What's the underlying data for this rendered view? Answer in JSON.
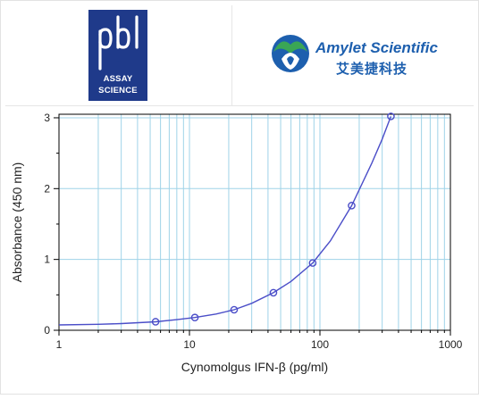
{
  "logos": {
    "pbl": {
      "letters": "pbl",
      "line1": "ASSAY",
      "line2": "SCIENCE"
    },
    "amylet": {
      "name": "Amylet Scientific",
      "name_cn": "艾美捷科技"
    }
  },
  "colors": {
    "pbl_blue": "#1f3a8a",
    "amylet_blue": "#1d5fae",
    "amylet_green": "#3aa655",
    "grid": "#9fd3e8",
    "curve": "#4b4ec8"
  },
  "chart_data": {
    "type": "scatter",
    "xlabel": "Cynomolgus IFN-β (pg/ml)",
    "ylabel": "Absorbance (450 nm)",
    "xscale": "log",
    "xlim": [
      1,
      1000
    ],
    "ylim": [
      0,
      3.05
    ],
    "x_ticks": [
      1,
      10,
      100,
      1000
    ],
    "x_tick_labels": [
      "1",
      "10",
      "100",
      "1000"
    ],
    "y_ticks": [
      0,
      1,
      2,
      3
    ],
    "y_tick_labels": [
      "0",
      "1",
      "2",
      "3"
    ],
    "grid": true,
    "series": [
      {
        "points": [
          {
            "x": 5.5,
            "y": 0.12
          },
          {
            "x": 11,
            "y": 0.18
          },
          {
            "x": 22,
            "y": 0.29
          },
          {
            "x": 44,
            "y": 0.53
          },
          {
            "x": 88,
            "y": 0.95
          },
          {
            "x": 175,
            "y": 1.76
          },
          {
            "x": 350,
            "y": 3.02
          }
        ],
        "fit_curve": [
          {
            "x": 1,
            "y": 0.075
          },
          {
            "x": 2,
            "y": 0.085
          },
          {
            "x": 3,
            "y": 0.095
          },
          {
            "x": 5.5,
            "y": 0.12
          },
          {
            "x": 8,
            "y": 0.15
          },
          {
            "x": 11,
            "y": 0.18
          },
          {
            "x": 16,
            "y": 0.23
          },
          {
            "x": 22,
            "y": 0.29
          },
          {
            "x": 30,
            "y": 0.38
          },
          {
            "x": 44,
            "y": 0.53
          },
          {
            "x": 60,
            "y": 0.69
          },
          {
            "x": 88,
            "y": 0.95
          },
          {
            "x": 120,
            "y": 1.26
          },
          {
            "x": 175,
            "y": 1.76
          },
          {
            "x": 250,
            "y": 2.36
          },
          {
            "x": 300,
            "y": 2.7
          },
          {
            "x": 350,
            "y": 3.02
          }
        ]
      }
    ]
  }
}
